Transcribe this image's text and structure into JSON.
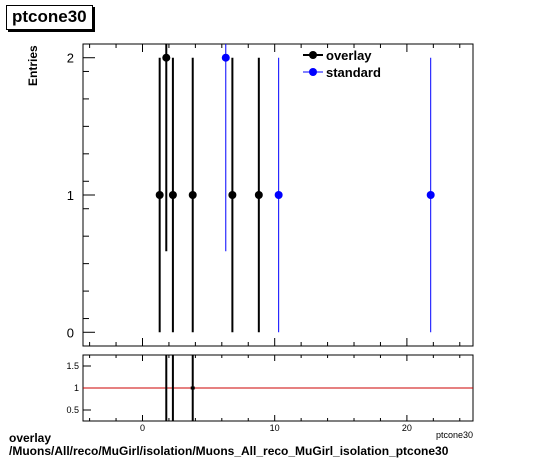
{
  "chart_data": [
    {
      "type": "scatter",
      "title": "ptcone30",
      "ylabel": "Entries",
      "xlabel": "ptcone30",
      "xlim": [
        -4.5,
        25
      ],
      "ylim": [
        -0.1,
        2.1
      ],
      "yticks": [
        0,
        1,
        2
      ],
      "xticks": [],
      "legend_position": "top-right",
      "series": [
        {
          "name": "overlay",
          "color": "#000000",
          "points": [
            {
              "x": 1.3,
              "y": 1,
              "err": 1
            },
            {
              "x": 1.8,
              "y": 2,
              "err": 1.41
            },
            {
              "x": 2.3,
              "y": 1,
              "err": 1
            },
            {
              "x": 3.8,
              "y": 1,
              "err": 1
            },
            {
              "x": 6.8,
              "y": 1,
              "err": 1
            },
            {
              "x": 8.8,
              "y": 1,
              "err": 1
            }
          ]
        },
        {
          "name": "standard",
          "color": "#0000ff",
          "points": [
            {
              "x": 6.3,
              "y": 2,
              "err": 1.41
            },
            {
              "x": 10.3,
              "y": 1,
              "err": 1
            },
            {
              "x": 21.8,
              "y": 1,
              "err": 1
            }
          ]
        }
      ]
    },
    {
      "type": "line",
      "title": "",
      "xlabel": "ptcone30",
      "ylabel": "",
      "xlim": [
        -4.5,
        25
      ],
      "ylim": [
        0.25,
        1.75
      ],
      "yticks": [
        0.5,
        1,
        1.5
      ],
      "ytick_labels": [
        "0.5",
        "1",
        "1.5"
      ],
      "xticks": [
        0,
        10,
        20
      ],
      "xtick_labels": [
        "0",
        "10",
        "20"
      ],
      "reference_line": {
        "y": 1,
        "color": "#cc0000"
      },
      "bars": [
        {
          "x": 1.8,
          "low": 0.25,
          "high": 1.75
        },
        {
          "x": 2.3,
          "low": 0.25,
          "high": 1.75
        },
        {
          "x": 3.8,
          "low": 0.25,
          "high": 1.75
        }
      ],
      "points": [
        {
          "x": 3.8,
          "y": 1
        }
      ]
    }
  ],
  "footer": {
    "line1": "overlay",
    "line2": "/Muons/All/reco/MuGirl/isolation/Muons_All_reco_MuGirl_isolation_ptcone30"
  }
}
